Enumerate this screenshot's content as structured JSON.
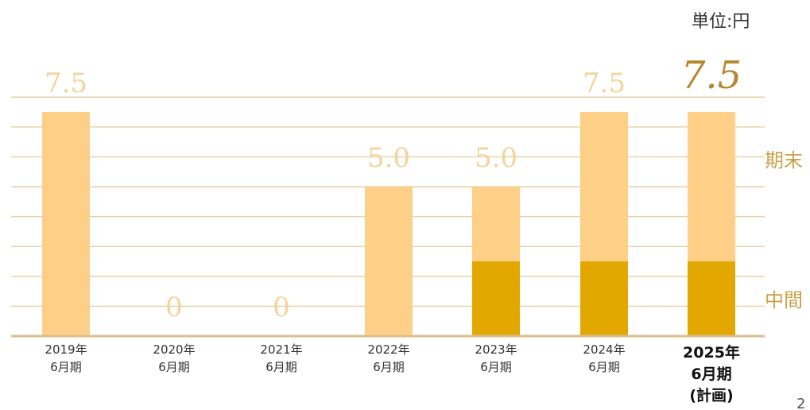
{
  "unit_label": "単位:円",
  "page_number": "2",
  "colors": {
    "year_end": "#FDCF87",
    "interim": "#E2A800",
    "grid": "#E6D3A8",
    "axis": "#D8BF8C",
    "label": "#F3D49C",
    "plan_label": "#B8862E",
    "legend": "#C9A24A"
  },
  "chart_data": {
    "type": "bar",
    "stacked": true,
    "ylim": [
      0,
      8
    ],
    "grid": true,
    "legend_placement": "right",
    "categories": [
      [
        "2019年",
        "6月期"
      ],
      [
        "2020年",
        "6月期"
      ],
      [
        "2021年",
        "6月期"
      ],
      [
        "2022年",
        "6月期"
      ],
      [
        "2023年",
        "6月期"
      ],
      [
        "2024年",
        "6月期"
      ],
      [
        "2025年",
        "6月期",
        "(計画)"
      ]
    ],
    "series": [
      {
        "name": "中間",
        "values": [
          0,
          0,
          0,
          0,
          2.5,
          2.5,
          2.5
        ]
      },
      {
        "name": "期末",
        "values": [
          7.5,
          0,
          0,
          5.0,
          2.5,
          5.0,
          5.0
        ]
      }
    ],
    "totals": [
      "7.5",
      "0",
      "0",
      "5.0",
      "5.0",
      "7.5",
      "7.5"
    ],
    "highlight_index": 6
  }
}
